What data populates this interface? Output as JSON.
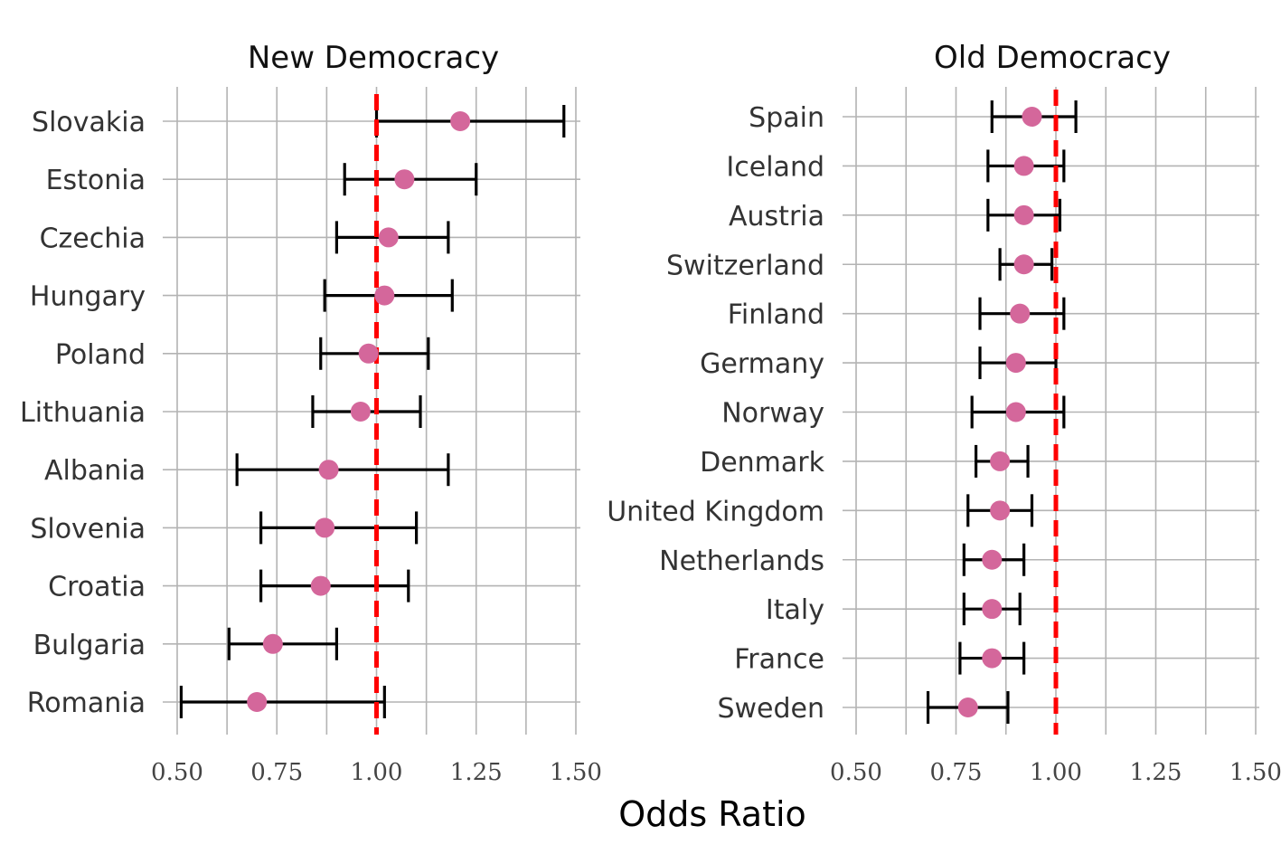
{
  "chart_data": {
    "type": "scatter",
    "subtype": "forest-plot",
    "xlabel": "Odds Ratio",
    "xlim": [
      0.5,
      1.5
    ],
    "xticks": [
      0.5,
      0.75,
      1.0,
      1.25,
      1.5
    ],
    "xtick_labels": [
      "0.50",
      "0.75",
      "1.00",
      "1.25",
      "1.50"
    ],
    "reference_line": 1.0,
    "grid": true,
    "colors": {
      "point": "#d4679b",
      "ci": "#000000",
      "reference": "#ff0000",
      "grid": "#b3b3b3"
    },
    "panels": [
      {
        "title": "New Democracy",
        "countries": [
          {
            "name": "Slovakia",
            "or": 1.21,
            "lo": 1.0,
            "hi": 1.47
          },
          {
            "name": "Estonia",
            "or": 1.07,
            "lo": 0.92,
            "hi": 1.25
          },
          {
            "name": "Czechia",
            "or": 1.03,
            "lo": 0.9,
            "hi": 1.18
          },
          {
            "name": "Hungary",
            "or": 1.02,
            "lo": 0.87,
            "hi": 1.19
          },
          {
            "name": "Poland",
            "or": 0.98,
            "lo": 0.86,
            "hi": 1.13
          },
          {
            "name": "Lithuania",
            "or": 0.96,
            "lo": 0.84,
            "hi": 1.11
          },
          {
            "name": "Albania",
            "or": 0.88,
            "lo": 0.65,
            "hi": 1.18
          },
          {
            "name": "Slovenia",
            "or": 0.87,
            "lo": 0.71,
            "hi": 1.1
          },
          {
            "name": "Croatia",
            "or": 0.86,
            "lo": 0.71,
            "hi": 1.08
          },
          {
            "name": "Bulgaria",
            "or": 0.74,
            "lo": 0.63,
            "hi": 0.9
          },
          {
            "name": "Romania",
            "or": 0.7,
            "lo": 0.51,
            "hi": 1.02
          }
        ]
      },
      {
        "title": "Old Democracy",
        "countries": [
          {
            "name": "Spain",
            "or": 0.94,
            "lo": 0.84,
            "hi": 1.05
          },
          {
            "name": "Iceland",
            "or": 0.92,
            "lo": 0.83,
            "hi": 1.02
          },
          {
            "name": "Austria",
            "or": 0.92,
            "lo": 0.83,
            "hi": 1.01
          },
          {
            "name": "Switzerland",
            "or": 0.92,
            "lo": 0.86,
            "hi": 0.99
          },
          {
            "name": "Finland",
            "or": 0.91,
            "lo": 0.81,
            "hi": 1.02
          },
          {
            "name": "Germany",
            "or": 0.9,
            "lo": 0.81,
            "hi": 1.0
          },
          {
            "name": "Norway",
            "or": 0.9,
            "lo": 0.79,
            "hi": 1.02
          },
          {
            "name": "Denmark",
            "or": 0.86,
            "lo": 0.8,
            "hi": 0.93
          },
          {
            "name": "United Kingdom",
            "or": 0.86,
            "lo": 0.78,
            "hi": 0.94
          },
          {
            "name": "Netherlands",
            "or": 0.84,
            "lo": 0.77,
            "hi": 0.92
          },
          {
            "name": "Italy",
            "or": 0.84,
            "lo": 0.77,
            "hi": 0.91
          },
          {
            "name": "France",
            "or": 0.84,
            "lo": 0.76,
            "hi": 0.92
          },
          {
            "name": "Sweden",
            "or": 0.78,
            "lo": 0.68,
            "hi": 0.88
          }
        ]
      }
    ]
  }
}
